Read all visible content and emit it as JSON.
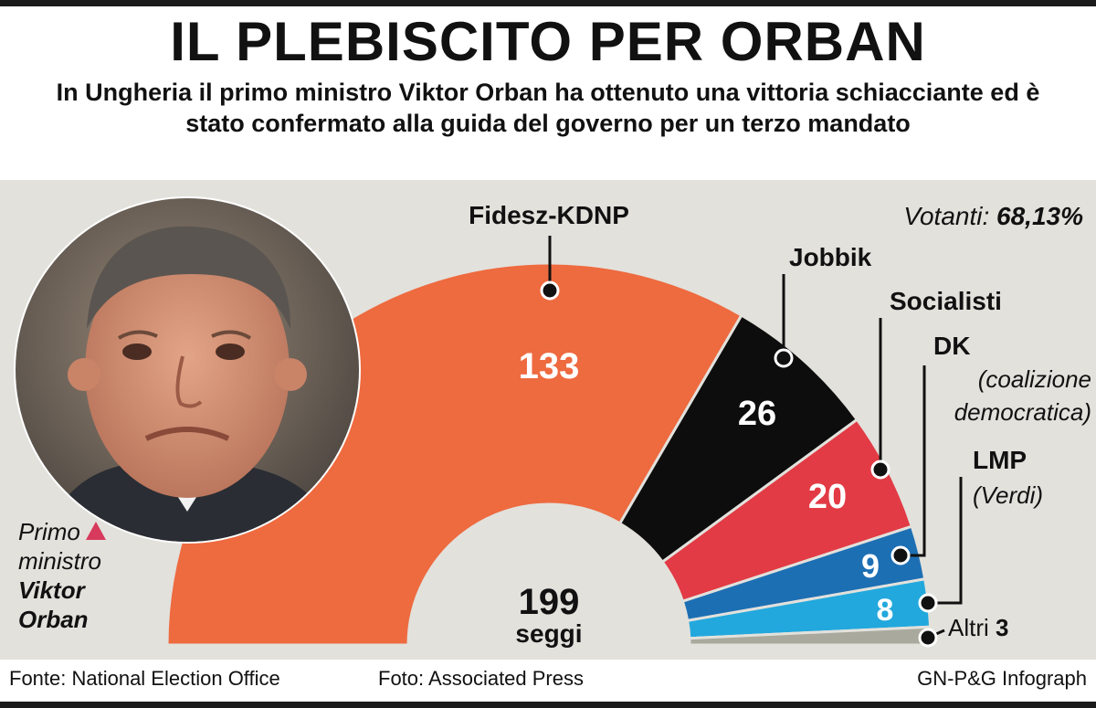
{
  "header": {
    "title": "IL PLEBISCITO PER ORBAN",
    "subtitle": "In Ungheria il primo ministro Viktor Orban ha ottenuto una vittoria schiacciante ed è stato confermato alla guida del governo per un terzo mandato"
  },
  "turnout": {
    "label": "Votanti:",
    "value": "68,13%"
  },
  "total": {
    "value": "199",
    "label": "seggi"
  },
  "photo": {
    "caption_line1": "Primo",
    "caption_line2": "ministro",
    "caption_line3": "Viktor",
    "caption_line4": "Orban"
  },
  "chart_data": {
    "type": "pie",
    "subtype": "semicircle-parliament",
    "total": 199,
    "series": [
      {
        "name": "Fidesz-KDNP",
        "value": 133,
        "label": "Fidesz-KDNP",
        "sublabel": "",
        "color": "#ee6a3f"
      },
      {
        "name": "Jobbik",
        "value": 26,
        "label": "Jobbik",
        "sublabel": "",
        "color": "#0d0d0d"
      },
      {
        "name": "Socialisti",
        "value": 20,
        "label": "Socialisti",
        "sublabel": "",
        "color": "#e23b45"
      },
      {
        "name": "DK",
        "value": 9,
        "label": "DK",
        "sublabel": "(coalizione democratica)",
        "color": "#1d6fb4"
      },
      {
        "name": "LMP",
        "value": 8,
        "label": "LMP",
        "sublabel": "(Verdi)",
        "color": "#22a8dd"
      },
      {
        "name": "Altri",
        "value": 3,
        "label": "Altri",
        "sublabel": "",
        "color": "#a9a99d"
      }
    ]
  },
  "footer": {
    "source": "Fonte: National Election Office",
    "photo_credit": "Foto: Associated Press",
    "credit": "GN-P&G Infograph"
  }
}
